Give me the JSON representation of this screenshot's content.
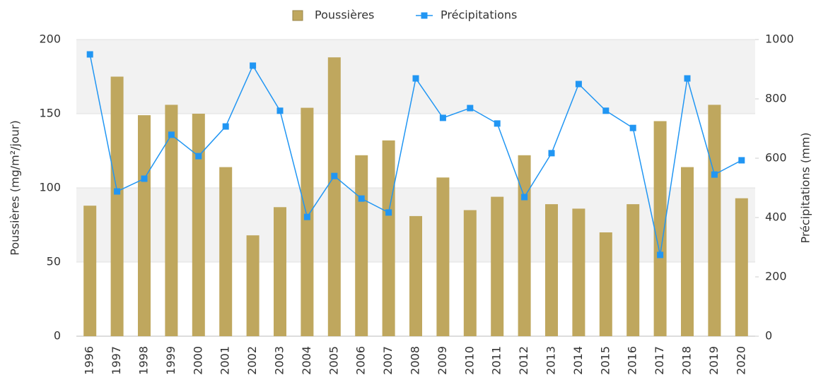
{
  "chart_data": {
    "type": "bar+line",
    "y_label": "Poussières (mg/m²/jour)",
    "y2_label": "Précipitations (mm)",
    "categories": [
      "1996",
      "1997",
      "1998",
      "1999",
      "2000",
      "2001",
      "2002",
      "2003",
      "2004",
      "2005",
      "2006",
      "2007",
      "2008",
      "2009",
      "2010",
      "2011",
      "2012",
      "2013",
      "2014",
      "2015",
      "2016",
      "2017",
      "2018",
      "2019",
      "2020"
    ],
    "series": [
      {
        "name": "Poussières",
        "type": "bar",
        "color": "#bfa75e",
        "values": [
          88,
          175,
          149,
          156,
          150,
          114,
          68,
          87,
          154,
          188,
          122,
          132,
          81,
          107,
          85,
          94,
          122,
          89,
          86,
          70,
          89,
          145,
          114,
          156,
          93
        ]
      },
      {
        "name": "Précipitations",
        "type": "line",
        "axis": "y2",
        "color": "#2196f3",
        "values": [
          950,
          488,
          531,
          679,
          607,
          707,
          912,
          760,
          402,
          540,
          464,
          417,
          869,
          736,
          769,
          717,
          469,
          617,
          850,
          760,
          702,
          274,
          869,
          545,
          593
        ]
      }
    ],
    "ylim": [
      0,
      200
    ],
    "yticks": [
      0,
      50,
      100,
      150,
      200
    ],
    "y2lim": [
      0,
      1000
    ],
    "y2ticks": [
      0,
      200,
      400,
      600,
      800,
      1000
    ],
    "grid": true,
    "legend": "top"
  }
}
